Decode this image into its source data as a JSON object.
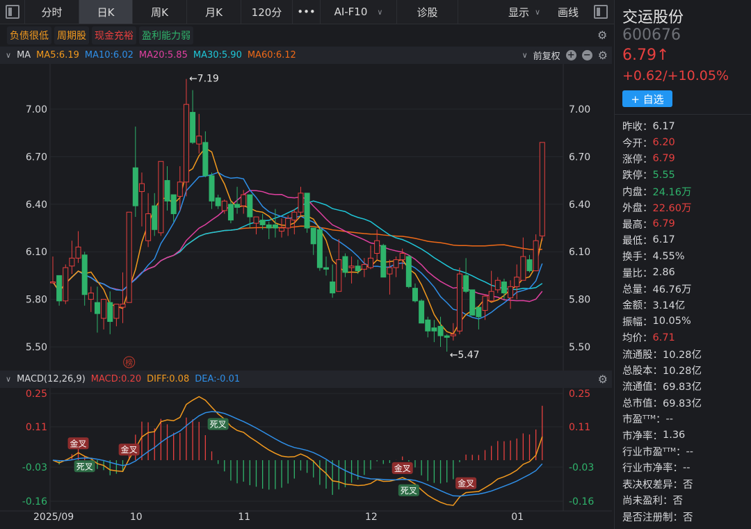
{
  "toolbar": {
    "tabs": [
      "分时",
      "日K",
      "周K",
      "月K",
      "120分",
      "•••",
      "AI-F10",
      "诊股"
    ],
    "active": "日K",
    "display": "显示",
    "draw": "画线"
  },
  "tags": [
    {
      "label": "负债很低",
      "color": "#f39a1e"
    },
    {
      "label": "周期股",
      "color": "#f39a1e"
    },
    {
      "label": "现金充裕",
      "color": "#e8403f"
    },
    {
      "label": "盈利能力弱",
      "color": "#2fb36b"
    }
  ],
  "ma_header": {
    "label": "MA",
    "items": [
      {
        "text": "MA5:6.19",
        "color": "#f39a1e"
      },
      {
        "text": "MA10:6.02",
        "color": "#2f8fe8"
      },
      {
        "text": "MA20:5.85",
        "color": "#e040a0"
      },
      {
        "text": "MA30:5.90",
        "color": "#1fc7d9"
      },
      {
        "text": "MA60:6.12",
        "color": "#f06a18"
      }
    ],
    "adjust": "前复权"
  },
  "macd_header": {
    "label": "MACD(12,26,9)",
    "macd": "MACD:0.20",
    "diff": "DIFF:0.08",
    "dea": "DEA:-0.01"
  },
  "stock": {
    "name": "交运股份",
    "code": "600676",
    "price": "6.79↑",
    "change": "+0.62/+10.05%",
    "add_label": "+ 自选"
  },
  "stats": [
    {
      "k": "昨收：",
      "v": "6.17",
      "c": ""
    },
    {
      "k": "今开：",
      "v": "6.20",
      "c": "red"
    },
    {
      "k": "涨停：",
      "v": "6.79",
      "c": "red"
    },
    {
      "k": "跌停：",
      "v": "5.55",
      "c": "green"
    },
    {
      "k": "内盘：",
      "v": "24.16万",
      "c": "green"
    },
    {
      "k": "外盘：",
      "v": "22.60万",
      "c": "red"
    },
    {
      "k": "最高：",
      "v": "6.79",
      "c": "red"
    },
    {
      "k": "最低：",
      "v": "6.17",
      "c": ""
    },
    {
      "k": "换手：",
      "v": "4.55%",
      "c": ""
    },
    {
      "k": "量比：",
      "v": "2.86",
      "c": ""
    },
    {
      "k": "总量：",
      "v": "46.76万",
      "c": ""
    },
    {
      "k": "金额：",
      "v": "3.14亿",
      "c": ""
    },
    {
      "k": "振幅：",
      "v": "10.05%",
      "c": ""
    },
    {
      "k": "均价：",
      "v": "6.71",
      "c": "red"
    },
    {
      "k": "流通股：",
      "v": "10.28亿",
      "c": ""
    },
    {
      "k": "总股本：",
      "v": "10.28亿",
      "c": ""
    },
    {
      "k": "流通值：",
      "v": "69.83亿",
      "c": ""
    },
    {
      "k": "总市值：",
      "v": "69.83亿",
      "c": ""
    },
    {
      "k": "市盈ᵀᵀᴹ：",
      "v": "--",
      "c": ""
    },
    {
      "k": "市净率：",
      "v": "1.36",
      "c": ""
    },
    {
      "k": "行业市盈ᵀᵀᴹ：",
      "v": "--",
      "c": ""
    },
    {
      "k": "行业市净率：",
      "v": "--",
      "c": ""
    },
    {
      "k": "表决权差异：",
      "v": "否",
      "c": ""
    },
    {
      "k": "尚未盈利：",
      "v": "否",
      "c": ""
    },
    {
      "k": "是否注册制：",
      "v": "否",
      "c": ""
    }
  ],
  "chart_data": {
    "type": "candlestick",
    "colors": {
      "up": "#e8403f",
      "down": "#2fb36b",
      "ma5": "#f39a1e",
      "ma10": "#2f8fe8",
      "ma20": "#e040a0",
      "ma30": "#1fc7d9",
      "ma60": "#f06a18",
      "diff": "#f39a1e",
      "dea": "#2f8fe8"
    },
    "price_ticks": [
      "7.00",
      "6.70",
      "6.40",
      "6.10",
      "5.80",
      "5.50"
    ],
    "macd_ticks": [
      "0.25",
      "0.11",
      "-0.03",
      "-0.16"
    ],
    "x_ticks": [
      {
        "label": "2025/09",
        "at": 0
      },
      {
        "label": "10",
        "at": 13
      },
      {
        "label": "11",
        "at": 30
      },
      {
        "label": "12",
        "at": 50
      },
      {
        "label": "01",
        "at": 73
      }
    ],
    "high_label": {
      "text": "←7.19",
      "at": 21
    },
    "low_label": {
      "text": "←5.47",
      "at": 62
    },
    "rank_marker": {
      "text": "榜",
      "at": 12
    },
    "cross_labels": [
      {
        "text": "金叉",
        "at": 4,
        "kind": "gold"
      },
      {
        "text": "死叉",
        "at": 5,
        "kind": "dead"
      },
      {
        "text": "金叉",
        "at": 12,
        "kind": "gold"
      },
      {
        "text": "死叉",
        "at": 26,
        "kind": "dead"
      },
      {
        "text": "金叉",
        "at": 55,
        "kind": "gold"
      },
      {
        "text": "死叉",
        "at": 56,
        "kind": "dead"
      },
      {
        "text": "金叉",
        "at": 65,
        "kind": "gold"
      }
    ],
    "candles_ohlc": [
      [
        5.91,
        6.07,
        5.9,
        5.91
      ],
      [
        5.95,
        5.95,
        5.76,
        5.79
      ],
      [
        5.79,
        6.02,
        5.77,
        6.0
      ],
      [
        6.01,
        6.17,
        5.96,
        6.06
      ],
      [
        6.06,
        6.23,
        6.03,
        6.13
      ],
      [
        6.08,
        6.1,
        5.76,
        5.83
      ],
      [
        5.8,
        5.88,
        5.72,
        5.84
      ],
      [
        5.78,
        5.88,
        5.59,
        5.71
      ],
      [
        5.68,
        5.8,
        5.61,
        5.8
      ],
      [
        5.78,
        5.85,
        5.58,
        5.66
      ],
      [
        5.68,
        5.77,
        5.63,
        5.77
      ],
      [
        5.75,
        5.97,
        5.65,
        5.77
      ],
      [
        5.78,
        6.35,
        5.78,
        6.35
      ],
      [
        6.63,
        6.89,
        6.32,
        6.39
      ],
      [
        6.48,
        6.6,
        6.26,
        6.53
      ],
      [
        6.17,
        6.47,
        6.13,
        6.34
      ],
      [
        6.39,
        6.47,
        6.2,
        6.24
      ],
      [
        6.22,
        6.67,
        6.2,
        6.67
      ],
      [
        6.55,
        6.64,
        6.36,
        6.42
      ],
      [
        6.46,
        6.46,
        6.29,
        6.34
      ],
      [
        6.45,
        6.64,
        6.36,
        6.54
      ],
      [
        6.54,
        7.19,
        6.45,
        7.03
      ],
      [
        6.98,
        7.12,
        6.78,
        6.79
      ],
      [
        6.78,
        6.97,
        6.72,
        6.83
      ],
      [
        6.79,
        6.86,
        6.57,
        6.58
      ],
      [
        6.58,
        6.6,
        6.37,
        6.42
      ],
      [
        6.44,
        6.46,
        6.37,
        6.39
      ],
      [
        6.36,
        6.43,
        6.34,
        6.42
      ],
      [
        6.4,
        6.42,
        6.28,
        6.3
      ],
      [
        6.4,
        6.51,
        6.34,
        6.38
      ],
      [
        6.39,
        6.49,
        6.34,
        6.46
      ],
      [
        6.46,
        6.46,
        6.25,
        6.32
      ],
      [
        6.28,
        6.32,
        6.21,
        6.32
      ],
      [
        6.3,
        6.34,
        6.24,
        6.27
      ],
      [
        6.27,
        6.29,
        6.18,
        6.25
      ],
      [
        6.27,
        6.37,
        6.19,
        6.25
      ],
      [
        6.23,
        6.31,
        6.19,
        6.25
      ],
      [
        6.25,
        6.33,
        6.2,
        6.31
      ],
      [
        6.3,
        6.37,
        6.21,
        6.35
      ],
      [
        6.35,
        6.51,
        6.33,
        6.47
      ],
      [
        6.47,
        6.47,
        6.22,
        6.25
      ],
      [
        6.25,
        6.25,
        6.08,
        6.15
      ],
      [
        6.24,
        6.24,
        5.98,
        6.0
      ],
      [
        6.0,
        6.07,
        5.95,
        5.99
      ],
      [
        5.91,
        6.02,
        5.81,
        5.84
      ],
      [
        5.85,
        6.18,
        5.85,
        6.05
      ],
      [
        6.07,
        6.09,
        5.94,
        5.97
      ],
      [
        6.0,
        6.07,
        5.9,
        6.01
      ],
      [
        6.01,
        6.05,
        5.96,
        5.98
      ],
      [
        5.99,
        6.06,
        5.94,
        6.02
      ],
      [
        6.0,
        6.14,
        5.99,
        6.06
      ],
      [
        6.09,
        6.24,
        6.05,
        6.17
      ],
      [
        6.14,
        6.15,
        5.94,
        5.94
      ],
      [
        5.96,
        6.05,
        5.83,
        6.0
      ],
      [
        6.0,
        6.07,
        5.94,
        6.05
      ],
      [
        6.05,
        6.12,
        5.99,
        6.09
      ],
      [
        6.07,
        6.08,
        5.87,
        5.88
      ],
      [
        5.87,
        5.9,
        5.78,
        5.79
      ],
      [
        5.79,
        5.8,
        5.65,
        5.65
      ],
      [
        5.67,
        5.69,
        5.56,
        5.6
      ],
      [
        5.62,
        5.67,
        5.53,
        5.6
      ],
      [
        5.63,
        5.69,
        5.5,
        5.57
      ],
      [
        5.57,
        5.58,
        5.47,
        5.56
      ],
      [
        5.57,
        5.65,
        5.54,
        5.58
      ],
      [
        5.6,
        6.0,
        5.58,
        5.96
      ],
      [
        5.95,
        6.06,
        5.84,
        5.85
      ],
      [
        5.86,
        5.86,
        5.7,
        5.7
      ],
      [
        5.75,
        5.75,
        5.61,
        5.69
      ],
      [
        5.73,
        5.83,
        5.67,
        5.82
      ],
      [
        5.79,
        5.98,
        5.79,
        5.85
      ],
      [
        5.86,
        5.94,
        5.84,
        5.92
      ],
      [
        5.91,
        5.93,
        5.8,
        5.84
      ],
      [
        5.81,
        5.92,
        5.74,
        5.88
      ],
      [
        5.88,
        6.02,
        5.8,
        5.94
      ],
      [
        5.92,
        6.19,
        5.92,
        6.07
      ],
      [
        6.05,
        6.08,
        5.97,
        5.98
      ],
      [
        5.98,
        6.21,
        5.98,
        6.17
      ],
      [
        6.2,
        6.79,
        6.17,
        6.79
      ]
    ]
  }
}
